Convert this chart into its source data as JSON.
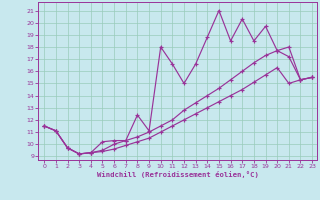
{
  "xlabel": "Windchill (Refroidissement éolien,°C)",
  "bg_color": "#c8e8ee",
  "grid_color": "#99ccbb",
  "line_color": "#993399",
  "xlim_min": -0.5,
  "xlim_max": 23.4,
  "ylim_min": 8.7,
  "ylim_max": 21.7,
  "xticks": [
    0,
    1,
    2,
    3,
    4,
    5,
    6,
    7,
    8,
    9,
    10,
    11,
    12,
    13,
    14,
    15,
    16,
    17,
    18,
    19,
    20,
    21,
    22,
    23
  ],
  "yticks": [
    9,
    10,
    11,
    12,
    13,
    14,
    15,
    16,
    17,
    18,
    19,
    20,
    21
  ],
  "line1_x": [
    0,
    1,
    2,
    3,
    4,
    5,
    6,
    7,
    8,
    9,
    10,
    11,
    12,
    13,
    14,
    15,
    16,
    17,
    18,
    19,
    20,
    21,
    22,
    23
  ],
  "line1_y": [
    11.5,
    11.1,
    9.7,
    9.2,
    9.3,
    10.2,
    10.3,
    10.3,
    12.4,
    11.1,
    18.0,
    16.6,
    15.0,
    16.6,
    18.8,
    21.0,
    18.5,
    20.3,
    18.5,
    19.7,
    17.7,
    17.2,
    15.3,
    15.5
  ],
  "line2_x": [
    0,
    1,
    2,
    3,
    4,
    5,
    6,
    7,
    8,
    9,
    10,
    11,
    12,
    13,
    14,
    15,
    16,
    17,
    18,
    19,
    20,
    21,
    22,
    23
  ],
  "line2_y": [
    11.5,
    11.1,
    9.7,
    9.2,
    9.3,
    9.5,
    10.0,
    10.3,
    10.6,
    11.0,
    11.5,
    12.0,
    12.8,
    13.4,
    14.0,
    14.6,
    15.3,
    16.0,
    16.7,
    17.3,
    17.7,
    18.0,
    15.3,
    15.5
  ],
  "line3_x": [
    0,
    1,
    2,
    3,
    4,
    5,
    6,
    7,
    8,
    9,
    10,
    11,
    12,
    13,
    14,
    15,
    16,
    17,
    18,
    19,
    20,
    21,
    22,
    23
  ],
  "line3_y": [
    11.5,
    11.1,
    9.7,
    9.2,
    9.3,
    9.4,
    9.6,
    9.9,
    10.2,
    10.5,
    11.0,
    11.5,
    12.0,
    12.5,
    13.0,
    13.5,
    14.0,
    14.5,
    15.1,
    15.7,
    16.3,
    15.0,
    15.3,
    15.5
  ]
}
